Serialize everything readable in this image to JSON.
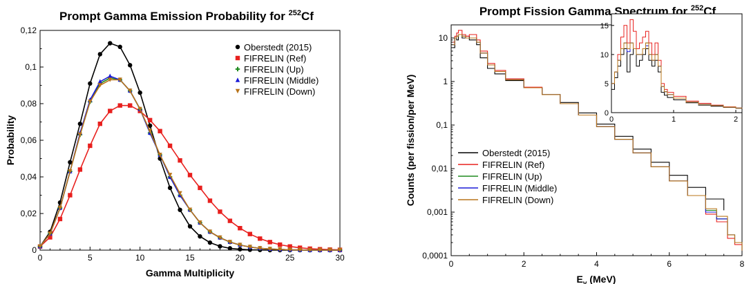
{
  "chart_data": [
    {
      "type": "line",
      "title": "Prompt Gamma Emission Probability for ",
      "title_sup": "252",
      "title_end": "Cf",
      "xlabel": "Gamma Multiplicity",
      "ylabel": "Probability",
      "xlim": [
        0,
        30
      ],
      "ylim": [
        0,
        0.12
      ],
      "xticks": [
        "0",
        "5",
        "10",
        "15",
        "20",
        "25",
        "30"
      ],
      "xtick_values": [
        0,
        5,
        10,
        15,
        20,
        25,
        30
      ],
      "yticks": [
        "0",
        "0,02",
        "0,04",
        "0,06",
        "0,08",
        "0,1",
        "0,12"
      ],
      "ytick_values": [
        0,
        0.02,
        0.04,
        0.06,
        0.08,
        0.1,
        0.12
      ],
      "grid": false,
      "legend_position": "top-right",
      "x": [
        0,
        1,
        2,
        3,
        4,
        5,
        6,
        7,
        8,
        9,
        10,
        11,
        12,
        13,
        14,
        15,
        16,
        17,
        18,
        19,
        20,
        21,
        22,
        23,
        24,
        25,
        26,
        27,
        28,
        29,
        30
      ],
      "series": [
        {
          "name": "Oberstedt (2015)",
          "color": "#000000",
          "marker": "circle",
          "values": [
            0.002,
            0.01,
            0.026,
            0.048,
            0.069,
            0.091,
            0.107,
            0.113,
            0.111,
            0.101,
            0.086,
            0.068,
            0.05,
            0.034,
            0.022,
            0.013,
            0.0075,
            0.0041,
            0.0021,
            0.001,
            0.0005,
            0.0002,
            0.0001,
            0,
            0,
            0,
            0,
            0,
            0,
            0,
            0
          ]
        },
        {
          "name": "FIFRELIN (Ref)",
          "color": "#e8201e",
          "marker": "square",
          "values": [
            0.002,
            0.007,
            0.017,
            0.03,
            0.044,
            0.057,
            0.069,
            0.076,
            0.079,
            0.079,
            0.076,
            0.071,
            0.065,
            0.057,
            0.049,
            0.041,
            0.034,
            0.027,
            0.021,
            0.016,
            0.012,
            0.0088,
            0.0063,
            0.0044,
            0.003,
            0.002,
            0.0013,
            0.0008,
            0.0005,
            0.0003,
            0.0002
          ]
        },
        {
          "name": "FIFRELIN (Up)",
          "color": "#1f8a1f",
          "marker": "plus",
          "values": [
            0.002,
            0.009,
            0.023,
            0.043,
            0.063,
            0.081,
            0.091,
            0.094,
            0.093,
            0.087,
            0.077,
            0.064,
            0.052,
            0.04,
            0.03,
            0.022,
            0.015,
            0.01,
            0.0068,
            0.0044,
            0.0028,
            0.0017,
            0.001,
            0.0006,
            0.0004,
            0.0002,
            0.0001,
            0,
            0,
            0,
            0
          ]
        },
        {
          "name": "FIFRELIN (Middle)",
          "color": "#1a1ad6",
          "marker": "triangle",
          "values": [
            0.002,
            0.009,
            0.023,
            0.043,
            0.064,
            0.082,
            0.092,
            0.095,
            0.093,
            0.087,
            0.077,
            0.064,
            0.052,
            0.04,
            0.03,
            0.022,
            0.015,
            0.01,
            0.0068,
            0.0044,
            0.0028,
            0.0017,
            0.001,
            0.0006,
            0.0004,
            0.0002,
            0.0001,
            0,
            0,
            0,
            0
          ]
        },
        {
          "name": "FIFRELIN (Down)",
          "color": "#b8741a",
          "marker": "triangle-down",
          "values": [
            0.002,
            0.009,
            0.023,
            0.043,
            0.063,
            0.081,
            0.09,
            0.093,
            0.093,
            0.087,
            0.077,
            0.065,
            0.052,
            0.041,
            0.031,
            0.022,
            0.015,
            0.01,
            0.0068,
            0.0044,
            0.0028,
            0.0017,
            0.001,
            0.0006,
            0.0004,
            0.0002,
            0.0001,
            0,
            0,
            0,
            0
          ]
        }
      ]
    },
    {
      "type": "line",
      "title": "Prompt Fission Gamma Spectrum for ",
      "title_sup": "252",
      "title_end": "Cf",
      "xlabel": "E",
      "xlabel_sub": "γ",
      "xlabel_end": " (MeV)",
      "ylabel": "Counts (per fission/per MeV)",
      "xlim": [
        0,
        8
      ],
      "ylim": [
        0.0001,
        20
      ],
      "yscale": "log",
      "xticks": [
        "0",
        "2",
        "4",
        "6",
        "8"
      ],
      "xtick_values": [
        0,
        2,
        4,
        6,
        8
      ],
      "yticks": [
        "0,0001",
        "0,001",
        "0,01",
        "0,1",
        "1",
        "10"
      ],
      "ytick_values": [
        0.0001,
        0.001,
        0.01,
        0.1,
        1,
        10
      ],
      "grid": false,
      "legend_position": "bottom-left",
      "series": [
        {
          "name": "Oberstedt (2015)",
          "color": "#000000",
          "x": [
            0.05,
            0.1,
            0.15,
            0.2,
            0.3,
            0.4,
            0.5,
            0.6,
            0.7,
            0.8,
            1.0,
            1.2,
            1.5,
            2.0,
            2.5,
            3.0,
            3.5,
            4.0,
            4.5,
            5.0,
            5.5,
            6.0,
            6.5,
            7.0,
            7.5
          ],
          "values": [
            6,
            10,
            9,
            12,
            10,
            11,
            9,
            9,
            7,
            3.5,
            2,
            1.5,
            1.05,
            0.72,
            0.5,
            0.33,
            0.19,
            0.105,
            0.055,
            0.028,
            0.014,
            0.007,
            0.0037,
            0.002,
            0.0011
          ]
        },
        {
          "name": "FIFRELIN (Ref)",
          "color": "#e8201e",
          "x": [
            0.05,
            0.1,
            0.15,
            0.2,
            0.3,
            0.4,
            0.5,
            0.6,
            0.7,
            0.8,
            1.0,
            1.2,
            1.5,
            2.0,
            2.5,
            3.0,
            3.5,
            4.0,
            4.5,
            5.0,
            5.5,
            6.0,
            6.5,
            7.0,
            7.3,
            7.6,
            7.8,
            8.0
          ],
          "values": [
            8,
            11,
            13,
            15,
            12,
            11,
            12,
            12,
            9,
            5,
            2.6,
            1.8,
            1.15,
            0.74,
            0.5,
            0.31,
            0.17,
            0.092,
            0.047,
            0.023,
            0.011,
            0.0052,
            0.0024,
            0.0009,
            0.0006,
            0.00025,
            0.00018,
            0.00013
          ]
        },
        {
          "name": "FIFRELIN (Up)",
          "color": "#1f8a1f",
          "x": [
            0.05,
            0.1,
            0.15,
            0.2,
            0.3,
            0.4,
            0.5,
            0.6,
            0.7,
            0.8,
            1.0,
            1.2,
            1.5,
            2.0,
            2.5,
            3.0,
            3.5,
            4.0,
            4.5,
            5.0,
            5.5,
            6.0,
            6.5,
            7.0,
            7.3,
            7.6,
            7.8,
            8.0
          ],
          "values": [
            7,
            10,
            11,
            12,
            11,
            10,
            10,
            10,
            8,
            4.5,
            2.4,
            1.7,
            1.1,
            0.72,
            0.5,
            0.31,
            0.17,
            0.092,
            0.047,
            0.023,
            0.011,
            0.0052,
            0.0024,
            0.0011,
            0.0007,
            0.0003,
            0.0002,
            0.00013
          ]
        },
        {
          "name": "FIFRELIN (Middle)",
          "color": "#1a1ad6",
          "x": [
            0.05,
            0.1,
            0.15,
            0.2,
            0.3,
            0.4,
            0.5,
            0.6,
            0.7,
            0.8,
            1.0,
            1.2,
            1.5,
            2.0,
            2.5,
            3.0,
            3.5,
            4.0,
            4.5,
            5.0,
            5.5,
            6.0,
            6.5,
            7.0,
            7.3,
            7.6,
            7.8,
            8.0
          ],
          "values": [
            7,
            10,
            11,
            12,
            11,
            10,
            10,
            10,
            8,
            4.5,
            2.4,
            1.7,
            1.1,
            0.72,
            0.5,
            0.31,
            0.17,
            0.092,
            0.047,
            0.023,
            0.011,
            0.0052,
            0.0024,
            0.001,
            0.0007,
            0.0003,
            0.0002,
            0.00013
          ]
        },
        {
          "name": "FIFRELIN (Down)",
          "color": "#b8741a",
          "x": [
            0.05,
            0.1,
            0.15,
            0.2,
            0.3,
            0.4,
            0.5,
            0.6,
            0.7,
            0.8,
            1.0,
            1.2,
            1.5,
            2.0,
            2.5,
            3.0,
            3.5,
            4.0,
            4.5,
            5.0,
            5.5,
            6.0,
            6.5,
            7.0,
            7.3,
            7.6,
            7.8,
            8.0
          ],
          "values": [
            7,
            10,
            11,
            12,
            11,
            10,
            10,
            10,
            8,
            4.5,
            2.4,
            1.7,
            1.1,
            0.72,
            0.5,
            0.31,
            0.17,
            0.092,
            0.047,
            0.023,
            0.011,
            0.0052,
            0.0024,
            0.0012,
            0.0008,
            0.0003,
            0.0002,
            0.00013
          ]
        }
      ],
      "inset": {
        "xlim": [
          0,
          2.1
        ],
        "ylim": [
          0,
          17
        ],
        "xticks": [
          "0",
          "1",
          "2"
        ],
        "xtick_values": [
          0,
          1,
          2
        ],
        "yticks": [
          "0",
          "5",
          "10",
          "15"
        ],
        "ytick_values": [
          0,
          5,
          10,
          15
        ],
        "series": [
          {
            "name": "Oberstedt (2015)",
            "color": "#000000",
            "x": [
              0,
              0.05,
              0.1,
              0.15,
              0.2,
              0.25,
              0.3,
              0.35,
              0.4,
              0.45,
              0.5,
              0.55,
              0.6,
              0.65,
              0.7,
              0.75,
              0.8,
              0.85,
              0.9,
              1.0,
              1.2,
              1.4,
              1.6,
              1.8,
              2.0,
              2.1
            ],
            "values": [
              4,
              6,
              8,
              10,
              11,
              7,
              10,
              11,
              8,
              9,
              10,
              11,
              9,
              8,
              9,
              7,
              3.5,
              3,
              2.6,
              2.2,
              1.7,
              1.3,
              1.1,
              0.9,
              0.75,
              0.7
            ]
          },
          {
            "name": "FIFRELIN (Ref)",
            "color": "#e8201e",
            "x": [
              0,
              0.05,
              0.1,
              0.15,
              0.2,
              0.25,
              0.3,
              0.35,
              0.4,
              0.45,
              0.5,
              0.55,
              0.6,
              0.65,
              0.7,
              0.75,
              0.8,
              0.85,
              0.9,
              1.0,
              1.2,
              1.4,
              1.6,
              1.8,
              2.0,
              2.1
            ],
            "values": [
              5,
              7,
              10,
              13,
              15,
              12,
              16,
              14,
              11,
              12,
              13,
              14,
              12,
              10,
              12,
              9,
              5,
              4,
              3.5,
              2.8,
              2.0,
              1.6,
              1.3,
              1.0,
              0.8,
              0.75
            ]
          },
          {
            "name": "FIFRELIN (Up)",
            "color": "#1f8a1f",
            "x": [
              0,
              0.05,
              0.1,
              0.15,
              0.2,
              0.25,
              0.3,
              0.35,
              0.4,
              0.45,
              0.5,
              0.55,
              0.6,
              0.65,
              0.7,
              0.75,
              0.8,
              0.85,
              0.9,
              1.0,
              1.2,
              1.4,
              1.6,
              1.8,
              2.0,
              2.1
            ],
            "values": [
              5,
              7,
              9,
              11,
              12,
              11,
              12,
              11,
              10,
              10,
              11,
              12,
              10,
              9,
              10,
              8,
              4.5,
              3.6,
              3.1,
              2.5,
              1.8,
              1.4,
              1.2,
              0.95,
              0.78,
              0.72
            ]
          },
          {
            "name": "FIFRELIN (Middle)",
            "color": "#1a1ad6",
            "x": [
              0,
              0.05,
              0.1,
              0.15,
              0.2,
              0.25,
              0.3,
              0.35,
              0.4,
              0.45,
              0.5,
              0.55,
              0.6,
              0.65,
              0.7,
              0.75,
              0.8,
              0.85,
              0.9,
              1.0,
              1.2,
              1.4,
              1.6,
              1.8,
              2.0,
              2.1
            ],
            "values": [
              5,
              7,
              9,
              11,
              12,
              10.5,
              12,
              11,
              10,
              10,
              11,
              11.5,
              10,
              9,
              10,
              8,
              4.5,
              3.6,
              3.1,
              2.5,
              1.8,
              1.4,
              1.2,
              0.95,
              0.78,
              0.72
            ]
          },
          {
            "name": "FIFRELIN (Down)",
            "color": "#b8741a",
            "x": [
              0,
              0.05,
              0.1,
              0.15,
              0.2,
              0.25,
              0.3,
              0.35,
              0.4,
              0.45,
              0.5,
              0.55,
              0.6,
              0.65,
              0.7,
              0.75,
              0.8,
              0.85,
              0.9,
              1.0,
              1.2,
              1.4,
              1.6,
              1.8,
              2.0,
              2.1
            ],
            "values": [
              5,
              7,
              9,
              11,
              12,
              11,
              12,
              11,
              10,
              10,
              11,
              12,
              10,
              9,
              10,
              8,
              4.5,
              3.6,
              3.1,
              2.5,
              1.8,
              1.4,
              1.2,
              0.95,
              0.78,
              0.72
            ]
          }
        ]
      }
    }
  ]
}
